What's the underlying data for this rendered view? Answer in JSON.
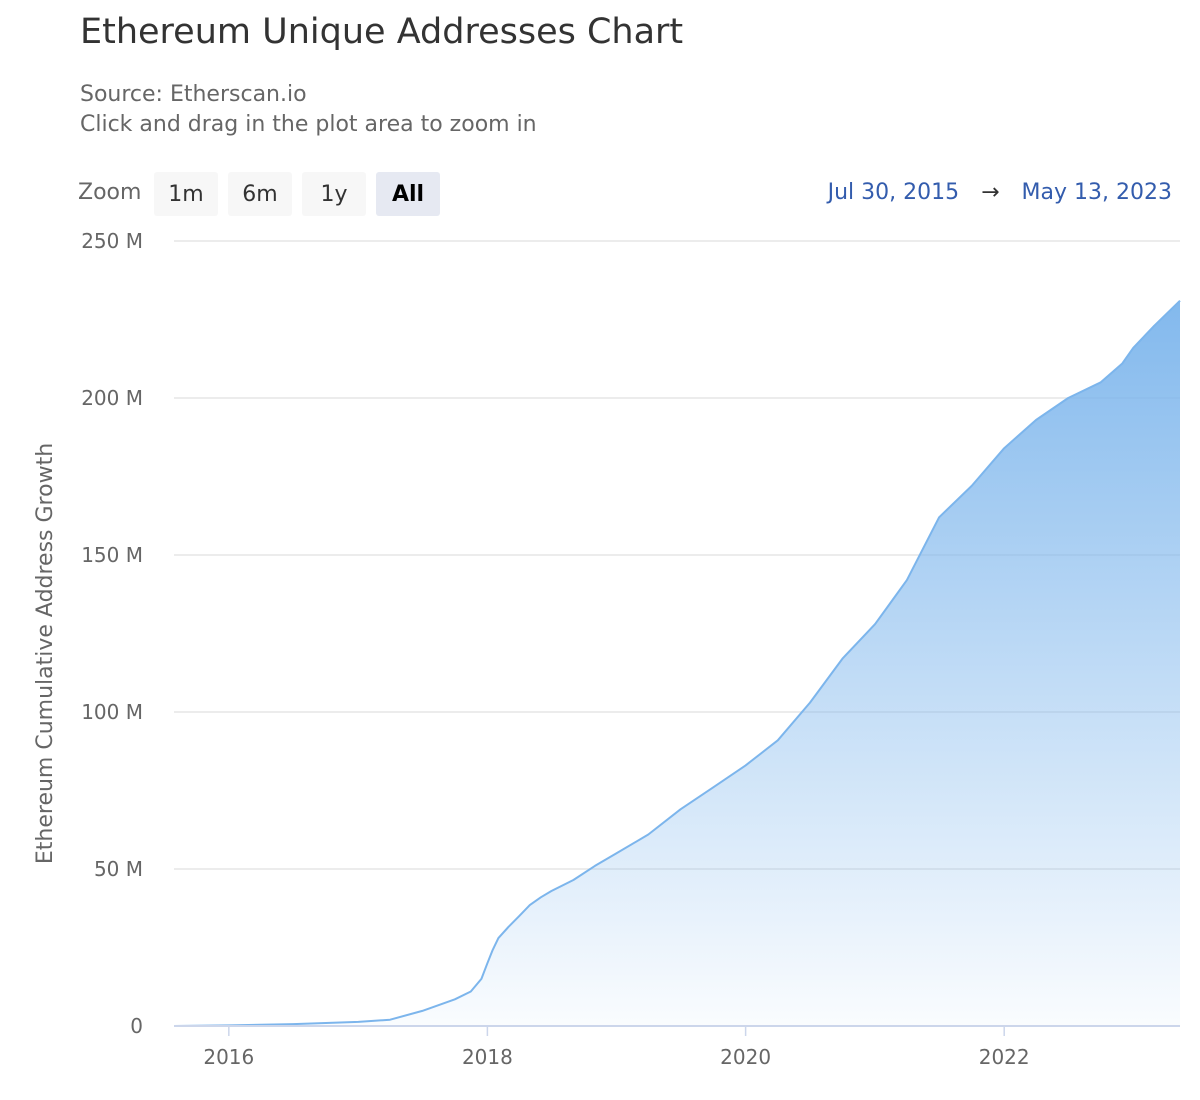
{
  "header": {
    "title": "Ethereum Unique Addresses Chart",
    "source": "Source: Etherscan.io",
    "hint": "Click and drag in the plot area to zoom in"
  },
  "zoom": {
    "label": "Zoom",
    "buttons": [
      "1m",
      "6m",
      "1y",
      "All"
    ],
    "active": "All"
  },
  "range": {
    "from": "Jul 30, 2015",
    "arrow": "→",
    "to": "May 13, 2023"
  },
  "colors": {
    "line": "#7cb5ec",
    "area_top": "#7cb5ec",
    "grid": "#e6e6e6",
    "range_text": "#335cad"
  },
  "chart_data": {
    "type": "area",
    "title": "Ethereum Unique Addresses Chart",
    "subtitle": "Source: Etherscan.io",
    "xlabel": "",
    "ylabel": "Ethereum Cumulative Address Growth",
    "x_range": [
      "2015-07-30",
      "2023-05-13"
    ],
    "ylim": [
      0,
      250000000
    ],
    "x_ticks": [
      "2016",
      "2018",
      "2020",
      "2022"
    ],
    "y_ticks": [
      "0",
      "50 M",
      "100 M",
      "150 M",
      "200 M",
      "250 M"
    ],
    "y_tick_values": [
      0,
      50000000,
      100000000,
      150000000,
      200000000,
      250000000
    ],
    "grid": true,
    "legend": "none",
    "series": [
      {
        "x": [
          "2015-07-30",
          "2016-01-01",
          "2016-07-01",
          "2017-01-01",
          "2017-04-01",
          "2017-07-01",
          "2017-10-01",
          "2017-11-15",
          "2017-12-15",
          "2018-01-01",
          "2018-01-15",
          "2018-02-01",
          "2018-03-01",
          "2018-04-01",
          "2018-05-01",
          "2018-06-01",
          "2018-07-01",
          "2018-09-01",
          "2018-11-01",
          "2019-01-01",
          "2019-04-01",
          "2019-07-01",
          "2019-10-01",
          "2020-01-01",
          "2020-04-01",
          "2020-07-01",
          "2020-10-01",
          "2021-01-01",
          "2021-04-01",
          "2021-07-01",
          "2021-10-01",
          "2022-01-01",
          "2022-04-01",
          "2022-07-01",
          "2022-10-01",
          "2022-12-01",
          "2023-01-01",
          "2023-03-01",
          "2023-05-13"
        ],
        "values": [
          10000,
          200000,
          600000,
          1300000,
          2000000,
          4800000,
          8500000,
          11000000,
          15000000,
          20000000,
          24000000,
          28000000,
          31500000,
          35000000,
          38500000,
          41000000,
          43000000,
          46500000,
          51000000,
          55000000,
          61000000,
          69000000,
          76000000,
          83000000,
          91000000,
          103000000,
          117000000,
          128000000,
          142000000,
          162000000,
          172000000,
          184000000,
          193000000,
          200000000,
          205000000,
          211000000,
          216000000,
          223000000,
          231000000
        ]
      }
    ]
  }
}
